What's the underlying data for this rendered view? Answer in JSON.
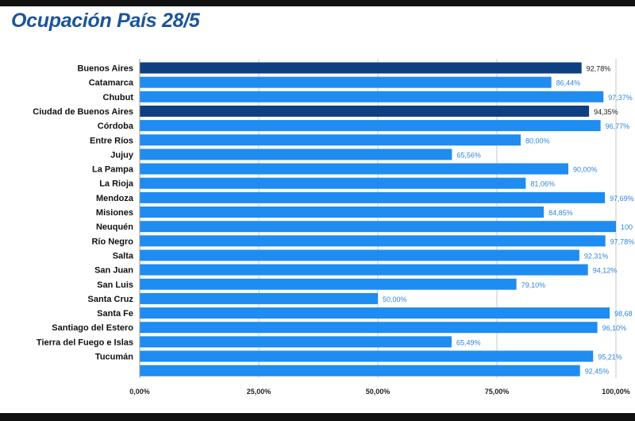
{
  "chart_data": {
    "type": "bar",
    "orientation": "horizontal",
    "title": "Ocupación País 28/5",
    "categories": [
      "Buenos Aires",
      "Catamarca",
      "Chubut",
      "Ciudad de Buenos Aires",
      "Córdoba",
      "Entre Ríos",
      "Jujuy",
      "La Pampa",
      "La Rioja",
      "Mendoza",
      "Misiones",
      "Neuquén",
      "Río Negro",
      "Salta",
      "San Juan",
      "San Luis",
      "Santa Cruz",
      "Santa Fe",
      "Santiago del Estero",
      "Tierra del Fuego e Islas",
      "Tucumán",
      ""
    ],
    "values": [
      92.78,
      86.44,
      97.37,
      94.35,
      96.77,
      80.0,
      65.56,
      90.0,
      81.06,
      97.69,
      84.85,
      100.0,
      97.78,
      92.31,
      94.12,
      79.1,
      50.0,
      98.68,
      96.1,
      65.49,
      95.21,
      92.45
    ],
    "value_labels": [
      "92,78%",
      "86,44%",
      "97,37%",
      "94,35%",
      "96,77%",
      "80,00%",
      "65,56%",
      "90,00%",
      "81,06%",
      "97,69%",
      "84,85%",
      "100",
      "97,78%",
      "92,31%",
      "94,12%",
      "79,10%",
      "50,00%",
      "98,68",
      "96,10%",
      "65,49%",
      "95,21%",
      "92,45%"
    ],
    "highlighted": [
      0,
      3
    ],
    "xlim": [
      0,
      100
    ],
    "x_ticks": [
      0,
      25,
      50,
      75,
      100
    ],
    "x_tick_labels": [
      "0,00%",
      "25,00%",
      "50,00%",
      "75,00%",
      "100,00%"
    ],
    "grid": true,
    "colors": {
      "bar": "#1e8cf0",
      "bar_highlight": "#0e3f80",
      "value_label": "#2f86dd",
      "value_label_highlight": "#1a1a1a",
      "title": "#1b5597",
      "grid": "#c8c8c8"
    }
  }
}
